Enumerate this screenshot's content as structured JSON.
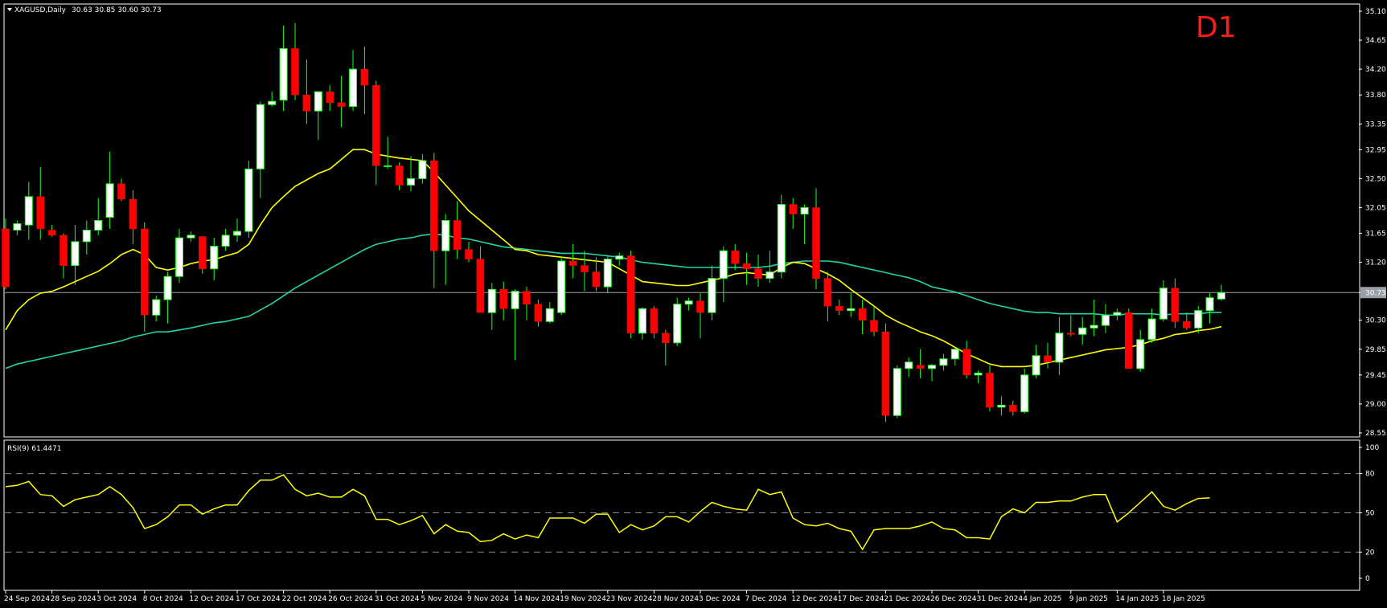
{
  "chart_data": [
    {
      "type": "candlestick",
      "header": {
        "symbol_label": "XAGUSD,Daily",
        "ohlc": "30.63 30.85 30.60 30.73"
      },
      "timeframe_badge": "D1",
      "y_range": [
        28.5,
        35.2
      ],
      "y_ticks": [
        "35.10",
        "34.65",
        "34.20",
        "33.80",
        "33.35",
        "32.95",
        "32.50",
        "32.05",
        "31.65",
        "31.20",
        "30.73",
        "30.30",
        "29.85",
        "29.45",
        "29.00",
        "28.55"
      ],
      "y_tick_values": [
        35.1,
        34.65,
        34.2,
        33.8,
        33.35,
        32.95,
        32.5,
        32.05,
        31.65,
        31.2,
        30.73,
        30.3,
        29.85,
        29.45,
        29.0,
        28.55
      ],
      "current_price": 30.73,
      "bull_color": "#ffffff",
      "bear_color": "#ff0000",
      "candles": [
        [
          31.72,
          31.88,
          30.78,
          30.82
        ],
        [
          31.7,
          31.85,
          31.62,
          31.8
        ],
        [
          31.78,
          32.45,
          31.55,
          32.22
        ],
        [
          32.22,
          32.68,
          31.55,
          31.72
        ],
        [
          31.7,
          31.78,
          31.6,
          31.62
        ],
        [
          31.62,
          31.65,
          30.95,
          31.15
        ],
        [
          31.15,
          31.78,
          30.85,
          31.52
        ],
        [
          31.52,
          31.85,
          31.32,
          31.7
        ],
        [
          31.7,
          32.2,
          31.62,
          31.85
        ],
        [
          31.9,
          32.92,
          31.72,
          32.42
        ],
        [
          32.42,
          32.5,
          32.15,
          32.18
        ],
        [
          32.18,
          32.32,
          31.48,
          31.72
        ],
        [
          31.72,
          31.82,
          30.12,
          30.38
        ],
        [
          30.38,
          30.68,
          30.28,
          30.62
        ],
        [
          30.62,
          31.05,
          30.25,
          30.98
        ],
        [
          30.98,
          31.72,
          30.88,
          31.58
        ],
        [
          31.58,
          31.68,
          31.52,
          31.62
        ],
        [
          31.6,
          31.6,
          31.02,
          31.1
        ],
        [
          31.1,
          31.58,
          30.92,
          31.45
        ],
        [
          31.45,
          31.72,
          31.38,
          31.62
        ],
        [
          31.62,
          31.88,
          31.52,
          31.68
        ],
        [
          31.68,
          32.78,
          31.58,
          32.65
        ],
        [
          32.65,
          33.7,
          32.2,
          33.65
        ],
        [
          33.65,
          33.85,
          33.62,
          33.7
        ],
        [
          33.72,
          34.88,
          33.55,
          34.52
        ],
        [
          34.52,
          34.92,
          33.72,
          33.8
        ],
        [
          33.8,
          34.35,
          33.35,
          33.55
        ],
        [
          33.55,
          33.85,
          33.1,
          33.85
        ],
        [
          33.85,
          33.95,
          33.55,
          33.68
        ],
        [
          33.68,
          34.1,
          33.3,
          33.62
        ],
        [
          33.62,
          34.5,
          33.55,
          34.2
        ],
        [
          34.2,
          34.55,
          33.5,
          33.95
        ],
        [
          33.95,
          34.02,
          32.4,
          32.7
        ],
        [
          32.7,
          33.15,
          32.65,
          32.7
        ],
        [
          32.7,
          32.75,
          32.32,
          32.4
        ],
        [
          32.4,
          32.85,
          32.3,
          32.5
        ],
        [
          32.5,
          32.88,
          32.42,
          32.78
        ],
        [
          32.78,
          32.9,
          30.8,
          31.38
        ],
        [
          31.38,
          31.95,
          30.85,
          31.85
        ],
        [
          31.85,
          32.15,
          31.25,
          31.4
        ],
        [
          31.4,
          31.52,
          31.2,
          31.25
        ],
        [
          31.25,
          31.45,
          30.42,
          30.42
        ],
        [
          30.42,
          30.88,
          30.15,
          30.78
        ],
        [
          30.78,
          30.9,
          30.3,
          30.48
        ],
        [
          30.48,
          30.78,
          29.68,
          30.75
        ],
        [
          30.75,
          30.82,
          30.3,
          30.55
        ],
        [
          30.55,
          30.62,
          30.2,
          30.28
        ],
        [
          30.28,
          30.58,
          30.25,
          30.48
        ],
        [
          30.42,
          31.28,
          30.38,
          31.22
        ],
        [
          31.22,
          31.48,
          30.95,
          31.15
        ],
        [
          31.15,
          31.38,
          30.75,
          31.05
        ],
        [
          31.05,
          31.28,
          30.75,
          30.82
        ],
        [
          30.82,
          31.3,
          30.72,
          31.25
        ],
        [
          31.25,
          31.35,
          31.15,
          31.3
        ],
        [
          31.3,
          31.38,
          30.02,
          30.1
        ],
        [
          30.1,
          30.5,
          30.0,
          30.48
        ],
        [
          30.48,
          30.52,
          30.02,
          30.1
        ],
        [
          30.1,
          30.15,
          29.6,
          29.95
        ],
        [
          29.95,
          30.65,
          29.9,
          30.55
        ],
        [
          30.55,
          30.65,
          30.45,
          30.6
        ],
        [
          30.6,
          30.72,
          30.02,
          30.42
        ],
        [
          30.42,
          31.15,
          30.3,
          30.95
        ],
        [
          30.95,
          31.45,
          30.58,
          31.38
        ],
        [
          31.38,
          31.48,
          31.08,
          31.18
        ],
        [
          31.18,
          31.35,
          30.85,
          31.1
        ],
        [
          31.1,
          31.32,
          30.82,
          30.95
        ],
        [
          30.95,
          31.38,
          30.88,
          31.05
        ],
        [
          31.05,
          32.25,
          30.95,
          32.1
        ],
        [
          32.1,
          32.2,
          31.72,
          31.95
        ],
        [
          31.95,
          32.1,
          31.48,
          32.05
        ],
        [
          32.05,
          32.35,
          30.78,
          30.95
        ],
        [
          30.95,
          31.05,
          30.28,
          30.52
        ],
        [
          30.52,
          30.62,
          30.38,
          30.45
        ],
        [
          30.45,
          30.72,
          30.35,
          30.48
        ],
        [
          30.48,
          30.62,
          30.08,
          30.3
        ],
        [
          30.3,
          30.52,
          30.05,
          30.12
        ],
        [
          30.12,
          30.25,
          28.72,
          28.82
        ],
        [
          28.82,
          29.6,
          28.78,
          29.55
        ],
        [
          29.55,
          29.72,
          29.42,
          29.65
        ],
        [
          29.6,
          29.85,
          29.4,
          29.55
        ],
        [
          29.55,
          29.62,
          29.35,
          29.6
        ],
        [
          29.6,
          29.78,
          29.52,
          29.7
        ],
        [
          29.7,
          29.88,
          29.6,
          29.85
        ],
        [
          29.85,
          29.98,
          29.4,
          29.45
        ],
        [
          29.45,
          29.52,
          29.32,
          29.48
        ],
        [
          29.48,
          29.6,
          28.88,
          28.95
        ],
        [
          28.95,
          29.12,
          28.82,
          28.98
        ],
        [
          28.98,
          29.05,
          28.82,
          28.88
        ],
        [
          28.88,
          29.55,
          28.85,
          29.45
        ],
        [
          29.45,
          29.92,
          29.4,
          29.75
        ],
        [
          29.75,
          29.95,
          29.55,
          29.65
        ],
        [
          29.65,
          30.35,
          29.45,
          30.1
        ],
        [
          30.1,
          30.38,
          30.05,
          30.08
        ],
        [
          30.08,
          30.35,
          29.92,
          30.18
        ],
        [
          30.18,
          30.62,
          30.05,
          30.22
        ],
        [
          30.22,
          30.55,
          30.1,
          30.38
        ],
        [
          30.38,
          30.48,
          30.3,
          30.42
        ],
        [
          30.42,
          30.48,
          29.55,
          29.55
        ],
        [
          29.55,
          30.15,
          29.5,
          30.0
        ],
        [
          30.0,
          30.48,
          29.95,
          30.32
        ],
        [
          30.32,
          30.92,
          30.28,
          30.8
        ],
        [
          30.8,
          30.95,
          30.18,
          30.28
        ],
        [
          30.28,
          30.42,
          30.15,
          30.18
        ],
        [
          30.18,
          30.52,
          30.1,
          30.45
        ],
        [
          30.45,
          30.72,
          30.25,
          30.65
        ],
        [
          30.63,
          30.85,
          30.6,
          30.73
        ]
      ],
      "ma_fast_color": "#ffff00",
      "ma_fast": [
        30.15,
        30.45,
        30.62,
        30.72,
        30.75,
        30.82,
        30.9,
        30.98,
        31.06,
        31.18,
        31.32,
        31.4,
        31.32,
        31.12,
        31.08,
        31.12,
        31.18,
        31.22,
        31.24,
        31.3,
        31.35,
        31.48,
        31.78,
        32.05,
        32.22,
        32.38,
        32.48,
        32.58,
        32.65,
        32.8,
        32.95,
        32.95,
        32.88,
        32.85,
        32.82,
        32.8,
        32.78,
        32.6,
        32.4,
        32.2,
        32.0,
        31.85,
        31.7,
        31.55,
        31.4,
        31.38,
        31.32,
        31.3,
        31.28,
        31.26,
        31.24,
        31.22,
        31.2,
        31.1,
        31.0,
        30.9,
        30.88,
        30.86,
        30.84,
        30.84,
        30.88,
        30.92,
        30.96,
        31.02,
        31.04,
        31.02,
        31.0,
        31.12,
        31.2,
        31.18,
        31.1,
        31.02,
        30.92,
        30.78,
        30.65,
        30.52,
        30.38,
        30.28,
        30.2,
        30.12,
        30.06,
        29.98,
        29.88,
        29.78,
        29.7,
        29.62,
        29.58,
        29.58,
        29.58,
        29.6,
        29.64,
        29.68,
        29.72,
        29.76,
        29.8,
        29.84,
        29.86,
        29.88,
        29.92,
        29.98,
        30.02,
        30.08,
        30.1,
        30.14,
        30.16,
        30.2
      ],
      "ma_slow_color": "#20d4a8",
      "ma_slow": [
        29.55,
        29.62,
        29.66,
        29.7,
        29.74,
        29.78,
        29.82,
        29.86,
        29.9,
        29.94,
        29.98,
        30.04,
        30.08,
        30.12,
        30.12,
        30.15,
        30.18,
        30.22,
        30.26,
        30.28,
        30.32,
        30.36,
        30.46,
        30.56,
        30.68,
        30.8,
        30.9,
        31.0,
        31.1,
        31.2,
        31.3,
        31.4,
        31.48,
        31.52,
        31.56,
        31.58,
        31.62,
        31.64,
        31.62,
        31.58,
        31.56,
        31.52,
        31.48,
        31.44,
        31.42,
        31.4,
        31.38,
        31.36,
        31.34,
        31.34,
        31.34,
        31.32,
        31.3,
        31.28,
        31.24,
        31.2,
        31.18,
        31.16,
        31.14,
        31.12,
        31.12,
        31.12,
        31.12,
        31.12,
        31.12,
        31.12,
        31.14,
        31.18,
        31.2,
        31.22,
        31.22,
        31.22,
        31.2,
        31.16,
        31.12,
        31.08,
        31.04,
        31.0,
        30.96,
        30.9,
        30.82,
        30.78,
        30.74,
        30.68,
        30.62,
        30.56,
        30.52,
        30.48,
        30.44,
        30.42,
        30.42,
        30.4,
        30.4,
        30.4,
        30.4,
        30.38,
        30.38,
        30.4,
        30.4,
        30.4,
        30.38,
        30.4,
        30.4,
        30.4,
        30.42,
        30.42
      ],
      "x_tick_labels": [
        "24 Sep 2024",
        "28 Sep 2024",
        "3 Oct 2024",
        "8 Oct 2024",
        "12 Oct 2024",
        "17 Oct 2024",
        "22 Oct 2024",
        "26 Oct 2024",
        "31 Oct 2024",
        "5 Nov 2024",
        "9 Nov 2024",
        "14 Nov 2024",
        "19 Nov 2024",
        "23 Nov 2024",
        "28 Nov 2024",
        "3 Dec 2024",
        "7 Dec 2024",
        "12 Dec 2024",
        "17 Dec 2024",
        "21 Dec 2024",
        "26 Dec 2024",
        "31 Dec 2024",
        "4 Jan 2025",
        "9 Jan 2025",
        "14 Jan 2025",
        "18 Jan 2025"
      ]
    },
    {
      "type": "line",
      "header": "RSI(9) 61.4471",
      "y_range": [
        0,
        100
      ],
      "y_ticks": [
        "100",
        "80",
        "50",
        "20",
        "0"
      ],
      "y_tick_values": [
        100,
        80,
        50,
        20,
        0
      ],
      "levels": [
        80,
        50,
        20
      ],
      "line_color": "#ffff00",
      "values": [
        70,
        71,
        74,
        64,
        63,
        55,
        60,
        62,
        64,
        70,
        64,
        54,
        38,
        41,
        47,
        56,
        56,
        49,
        53,
        56,
        56,
        67,
        75,
        75,
        79,
        68,
        63,
        65,
        62,
        62,
        68,
        63,
        45,
        45,
        41,
        44,
        48,
        34,
        41,
        36,
        35,
        28,
        29,
        34,
        30,
        33,
        31,
        46,
        46,
        46,
        42,
        49,
        49,
        35,
        41,
        37,
        40,
        47,
        47,
        43,
        51,
        58,
        55,
        53,
        52,
        68,
        64,
        66,
        46,
        41,
        40,
        42,
        38,
        36,
        22,
        37,
        38,
        38,
        38,
        40,
        43,
        38,
        37,
        31,
        31,
        30,
        47,
        53,
        50,
        58,
        58,
        59,
        59,
        62,
        64,
        64,
        43,
        50,
        58,
        66,
        55,
        52,
        57,
        61,
        61.4
      ]
    }
  ]
}
